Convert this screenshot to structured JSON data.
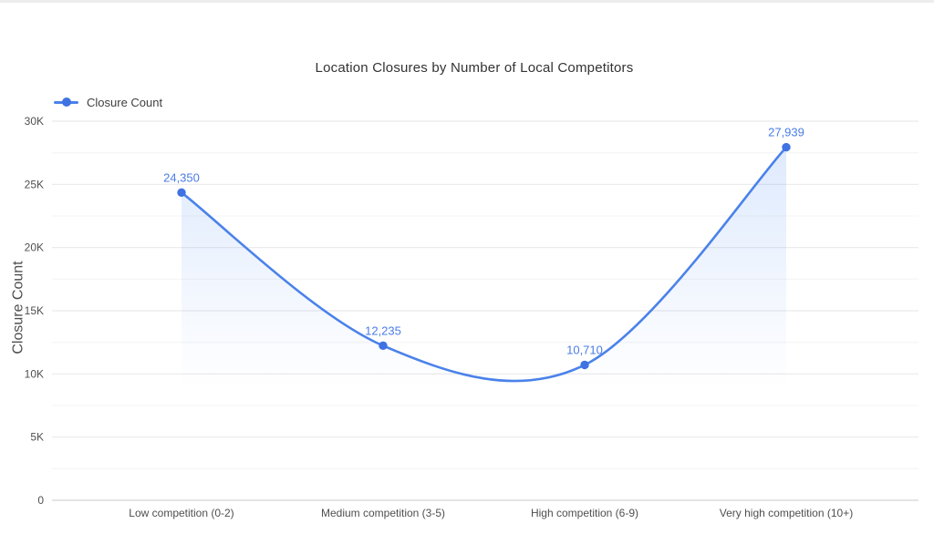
{
  "chart_data": {
    "type": "line",
    "title": "Location Closures by Number of Local Competitors",
    "categories": [
      "Low competition (0-2)",
      "Medium competition (3-5)",
      "High competition (6-9)",
      "Very high competition (10+)"
    ],
    "series": [
      {
        "name": "Closure Count",
        "values": [
          24350,
          12235,
          10710,
          27939
        ]
      }
    ],
    "data_labels": [
      "24,350",
      "12,235",
      "10,710",
      "27,939"
    ],
    "xlabel": "",
    "ylabel": "Closure Count",
    "ylim": [
      0,
      30000
    ],
    "y_ticks": [
      "0",
      "5K",
      "10K",
      "15K",
      "20K",
      "25K",
      "30K"
    ],
    "y_tick_values": [
      0,
      5000,
      10000,
      15000,
      20000,
      25000,
      30000
    ],
    "minor_tick_step": 2500,
    "grid": true,
    "line_shape": "spline",
    "area_fill": true,
    "markers": true,
    "legend_position": "top-left"
  },
  "colors": {
    "accent": "#4a82ea",
    "marker": "#3f72e2",
    "label_text": "#4a7ce6",
    "title_text": "#333333",
    "tick_text": "#4f4f4f",
    "legend_text": "#3f3f3f",
    "grid_major": "#e9e9e9",
    "grid_minor": "#f5f5f5",
    "axis_line": "#d4d4d4",
    "area_fill": "#4285f4",
    "page_top_strip": "#ededed"
  }
}
